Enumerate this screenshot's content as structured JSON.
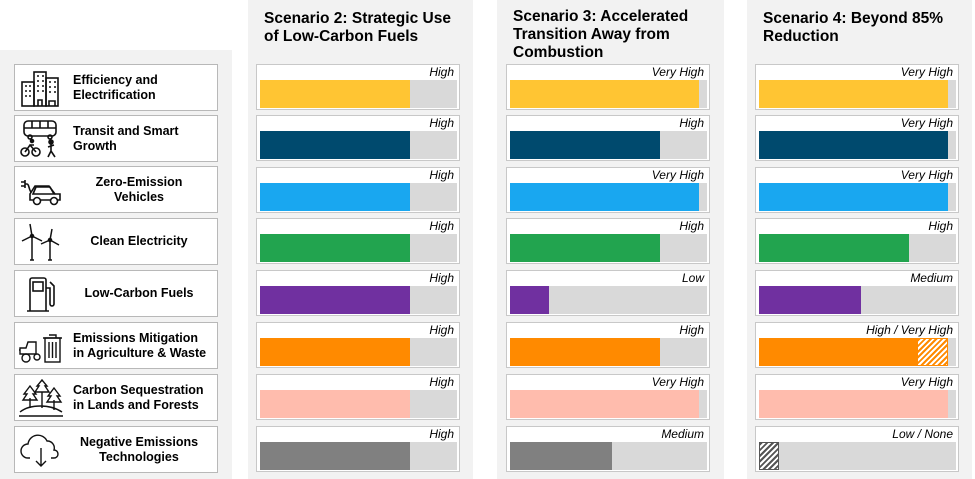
{
  "strategies": [
    {
      "label_line1": "Efficiency and",
      "label_line2": "Electrification",
      "icon": "buildings-icon"
    },
    {
      "label_line1": "Transit and Smart",
      "label_line2": "Growth",
      "icon": "bus-bike-walk-icon"
    },
    {
      "label_line1": "Zero-Emission",
      "label_line2": "Vehicles",
      "icon": "electric-car-icon"
    },
    {
      "label_line1": "Clean Electricity",
      "label_line2": "",
      "icon": "wind-turbine-icon"
    },
    {
      "label_line1": "Low-Carbon Fuels",
      "label_line2": "",
      "icon": "fuel-pump-icon"
    },
    {
      "label_line1": "Emissions Mitigation",
      "label_line2": "in Agriculture & Waste",
      "icon": "tractor-trash-icon"
    },
    {
      "label_line1": "Carbon Sequestration",
      "label_line2": "in Lands and Forests",
      "icon": "forest-icon"
    },
    {
      "label_line1": "Negative Emissions",
      "label_line2": "Technologies",
      "icon": "cloud-download-icon"
    }
  ],
  "bar_colors": [
    "#ffc533",
    "#004a6e",
    "#19a7f0",
    "#22a44f",
    "#7030a0",
    "#ff8a00",
    "#ffbcad",
    "#808080"
  ],
  "track_color": "#d9d9d9",
  "scenarios": [
    {
      "title_lines": [
        "Scenario 2: Strategic Use",
        "of Low-Carbon Fuels"
      ],
      "ratings": [
        {
          "text": "High",
          "level": 0.76
        },
        {
          "text": "High",
          "level": 0.76
        },
        {
          "text": "High",
          "level": 0.76
        },
        {
          "text": "High",
          "level": 0.76
        },
        {
          "text": "High",
          "level": 0.76
        },
        {
          "text": "High",
          "level": 0.76
        },
        {
          "text": "High",
          "level": 0.76
        },
        {
          "text": "High",
          "level": 0.76
        }
      ]
    },
    {
      "title_lines": [
        "Scenario 3: Accelerated",
        "Transition Away from",
        "Combustion"
      ],
      "ratings": [
        {
          "text": "Very High",
          "level": 0.96
        },
        {
          "text": "High",
          "level": 0.76
        },
        {
          "text": "Very High",
          "level": 0.96
        },
        {
          "text": "High",
          "level": 0.76
        },
        {
          "text": "Low",
          "level": 0.2
        },
        {
          "text": "High",
          "level": 0.76
        },
        {
          "text": "Very High",
          "level": 0.96
        },
        {
          "text": "Medium",
          "level": 0.52
        }
      ]
    },
    {
      "title_lines": [
        "Scenario 4: Beyond 85%",
        "Reduction"
      ],
      "ratings": [
        {
          "text": "Very High",
          "level": 0.96
        },
        {
          "text": "Very High",
          "level": 0.96
        },
        {
          "text": "Very High",
          "level": 0.96
        },
        {
          "text": "High",
          "level": 0.76
        },
        {
          "text": "Medium",
          "level": 0.52
        },
        {
          "text": "High / Very High",
          "level": 0.8,
          "hatch_to": 0.96
        },
        {
          "text": "Very High",
          "level": 0.96
        },
        {
          "text": "Low / None",
          "level": 0.0,
          "hatch_to": 0.1
        }
      ]
    }
  ]
}
